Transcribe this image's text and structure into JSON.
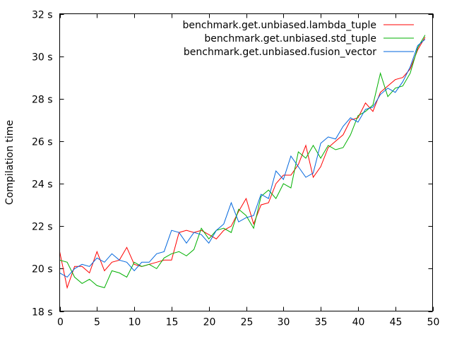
{
  "chart_data": {
    "type": "line",
    "title": "",
    "xlabel": "",
    "ylabel": "Compilation time",
    "xlim": [
      0,
      50
    ],
    "ylim": [
      18,
      32
    ],
    "xticks": [
      "0",
      "5",
      "10",
      "15",
      "20",
      "25",
      "30",
      "35",
      "40",
      "45",
      "50"
    ],
    "yticks": [
      "18 s",
      "20 s",
      "22 s",
      "24 s",
      "26 s",
      "28 s",
      "30 s",
      "32 s"
    ],
    "grid": false,
    "legend_position": "top-right",
    "x": [
      0,
      1,
      2,
      3,
      4,
      5,
      6,
      7,
      8,
      9,
      10,
      11,
      12,
      13,
      14,
      15,
      16,
      17,
      18,
      19,
      20,
      21,
      22,
      23,
      24,
      25,
      26,
      27,
      28,
      29,
      30,
      31,
      32,
      33,
      34,
      35,
      36,
      37,
      38,
      39,
      40,
      41,
      42,
      43,
      44,
      45,
      46,
      47,
      48,
      49
    ],
    "series": [
      {
        "name": "benchmark.get.unbiased.lambda_tuple",
        "color": "#ff0000",
        "values": [
          20.8,
          19.1,
          20.1,
          20.1,
          19.8,
          20.8,
          19.9,
          20.3,
          20.4,
          21.0,
          20.2,
          20.1,
          20.2,
          20.3,
          20.4,
          20.4,
          21.7,
          21.8,
          21.7,
          21.8,
          21.6,
          21.4,
          21.8,
          22.0,
          22.7,
          23.3,
          22.1,
          23.0,
          23.1,
          24.0,
          24.4,
          24.4,
          24.9,
          25.8,
          24.3,
          24.8,
          25.7,
          26.0,
          26.3,
          27.0,
          27.1,
          27.8,
          27.4,
          28.3,
          28.6,
          28.9,
          29.0,
          29.4,
          30.3,
          30.9
        ]
      },
      {
        "name": "benchmark.get.unbiased.std_tuple",
        "color": "#00b000",
        "values": [
          20.4,
          20.3,
          19.6,
          19.3,
          19.5,
          19.2,
          19.1,
          19.9,
          19.8,
          19.6,
          20.3,
          20.1,
          20.2,
          20.0,
          20.5,
          20.7,
          20.8,
          20.6,
          20.9,
          21.9,
          21.4,
          21.8,
          21.9,
          21.7,
          22.8,
          22.5,
          21.9,
          23.4,
          23.7,
          23.3,
          24.0,
          23.8,
          25.5,
          25.2,
          25.8,
          25.2,
          25.8,
          25.6,
          25.7,
          26.3,
          27.2,
          27.4,
          27.7,
          29.2,
          28.1,
          28.5,
          28.6,
          29.2,
          30.4,
          31.0
        ]
      },
      {
        "name": "benchmark.get.unbiased.fusion_vector",
        "color": "#0066dd",
        "values": [
          19.8,
          19.6,
          20.0,
          20.2,
          20.1,
          20.5,
          20.3,
          20.7,
          20.4,
          20.3,
          19.9,
          20.3,
          20.3,
          20.7,
          20.8,
          21.8,
          21.7,
          21.2,
          21.7,
          21.6,
          21.2,
          21.8,
          22.1,
          23.1,
          22.2,
          22.4,
          22.5,
          23.5,
          23.3,
          24.6,
          24.2,
          25.3,
          24.8,
          24.3,
          24.5,
          25.9,
          26.2,
          26.1,
          26.7,
          27.1,
          26.9,
          27.5,
          27.6,
          28.2,
          28.5,
          28.3,
          28.8,
          29.5,
          30.5,
          30.8
        ]
      }
    ]
  }
}
